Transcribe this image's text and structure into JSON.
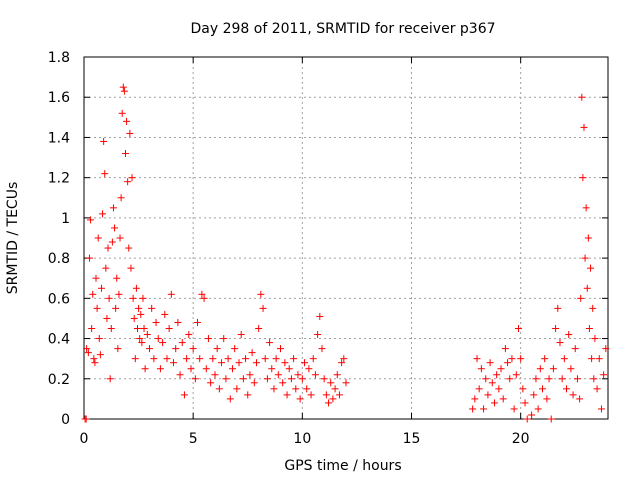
{
  "chart_data": {
    "type": "scatter",
    "title": "Day 298 of 2011, SRMTID for receiver p367",
    "xlabel": "GPS time / hours",
    "ylabel": "SRMTID / TECUs",
    "xlim": [
      0,
      24
    ],
    "ylim": [
      0,
      1.8
    ],
    "x_ticks": [
      0,
      5,
      10,
      15,
      20
    ],
    "x_tick_labels": [
      "0",
      "5",
      "10",
      "15",
      "20"
    ],
    "y_ticks": [
      0,
      0.2,
      0.4,
      0.6,
      0.8,
      1.0,
      1.2,
      1.4,
      1.6,
      1.8
    ],
    "y_tick_labels": [
      "0",
      "0.2",
      "0.4",
      "0.6",
      "0.8",
      "1",
      "1.2",
      "1.4",
      "1.6",
      "1.8"
    ],
    "grid": true,
    "marker": "+",
    "color": "#ff0000",
    "series": [
      {
        "name": "SRMTID p367",
        "points": [
          [
            0.05,
            0.0
          ],
          [
            0.1,
            0.0
          ],
          [
            0.12,
            0.35
          ],
          [
            0.2,
            0.33
          ],
          [
            0.25,
            0.8
          ],
          [
            0.3,
            0.99
          ],
          [
            0.35,
            0.45
          ],
          [
            0.4,
            0.62
          ],
          [
            0.45,
            0.3
          ],
          [
            0.5,
            0.28
          ],
          [
            0.55,
            0.7
          ],
          [
            0.6,
            0.55
          ],
          [
            0.65,
            0.9
          ],
          [
            0.7,
            0.4
          ],
          [
            0.75,
            0.32
          ],
          [
            0.8,
            0.65
          ],
          [
            0.85,
            1.02
          ],
          [
            0.9,
            1.38
          ],
          [
            0.95,
            1.22
          ],
          [
            1.0,
            0.75
          ],
          [
            1.05,
            0.5
          ],
          [
            1.1,
            0.85
          ],
          [
            1.15,
            0.6
          ],
          [
            1.2,
            0.2
          ],
          [
            1.25,
            0.45
          ],
          [
            1.3,
            0.88
          ],
          [
            1.35,
            1.05
          ],
          [
            1.4,
            0.95
          ],
          [
            1.45,
            0.55
          ],
          [
            1.5,
            0.7
          ],
          [
            1.55,
            0.35
          ],
          [
            1.6,
            0.62
          ],
          [
            1.65,
            0.9
          ],
          [
            1.7,
            1.1
          ],
          [
            1.75,
            1.52
          ],
          [
            1.8,
            1.65
          ],
          [
            1.85,
            1.63
          ],
          [
            1.9,
            1.32
          ],
          [
            1.95,
            1.48
          ],
          [
            2.0,
            1.18
          ],
          [
            2.05,
            0.85
          ],
          [
            2.1,
            1.42
          ],
          [
            2.15,
            0.75
          ],
          [
            2.2,
            1.2
          ],
          [
            2.25,
            0.6
          ],
          [
            2.3,
            0.5
          ],
          [
            2.35,
            0.3
          ],
          [
            2.4,
            0.65
          ],
          [
            2.45,
            0.45
          ],
          [
            2.5,
            0.55
          ],
          [
            2.55,
            0.4
          ],
          [
            2.6,
            0.52
          ],
          [
            2.65,
            0.38
          ],
          [
            2.7,
            0.6
          ],
          [
            2.75,
            0.45
          ],
          [
            2.8,
            0.25
          ],
          [
            2.9,
            0.42
          ],
          [
            3.0,
            0.35
          ],
          [
            3.1,
            0.55
          ],
          [
            3.2,
            0.3
          ],
          [
            3.3,
            0.48
          ],
          [
            3.4,
            0.4
          ],
          [
            3.5,
            0.25
          ],
          [
            3.6,
            0.38
          ],
          [
            3.7,
            0.52
          ],
          [
            3.8,
            0.3
          ],
          [
            3.9,
            0.45
          ],
          [
            4.0,
            0.62
          ],
          [
            4.1,
            0.28
          ],
          [
            4.2,
            0.35
          ],
          [
            4.3,
            0.48
          ],
          [
            4.4,
            0.22
          ],
          [
            4.5,
            0.38
          ],
          [
            4.6,
            0.12
          ],
          [
            4.7,
            0.3
          ],
          [
            4.8,
            0.42
          ],
          [
            4.9,
            0.25
          ],
          [
            5.0,
            0.35
          ],
          [
            5.1,
            0.2
          ],
          [
            5.2,
            0.48
          ],
          [
            5.3,
            0.3
          ],
          [
            5.4,
            0.62
          ],
          [
            5.5,
            0.6
          ],
          [
            5.6,
            0.25
          ],
          [
            5.7,
            0.4
          ],
          [
            5.8,
            0.18
          ],
          [
            5.9,
            0.3
          ],
          [
            6.0,
            0.22
          ],
          [
            6.1,
            0.35
          ],
          [
            6.2,
            0.15
          ],
          [
            6.3,
            0.28
          ],
          [
            6.4,
            0.4
          ],
          [
            6.5,
            0.2
          ],
          [
            6.6,
            0.3
          ],
          [
            6.7,
            0.1
          ],
          [
            6.8,
            0.25
          ],
          [
            6.9,
            0.35
          ],
          [
            7.0,
            0.15
          ],
          [
            7.1,
            0.28
          ],
          [
            7.2,
            0.42
          ],
          [
            7.3,
            0.2
          ],
          [
            7.4,
            0.3
          ],
          [
            7.5,
            0.12
          ],
          [
            7.6,
            0.22
          ],
          [
            7.7,
            0.33
          ],
          [
            7.8,
            0.18
          ],
          [
            7.9,
            0.28
          ],
          [
            8.0,
            0.45
          ],
          [
            8.1,
            0.62
          ],
          [
            8.2,
            0.55
          ],
          [
            8.3,
            0.3
          ],
          [
            8.4,
            0.2
          ],
          [
            8.5,
            0.38
          ],
          [
            8.6,
            0.25
          ],
          [
            8.7,
            0.15
          ],
          [
            8.8,
            0.3
          ],
          [
            8.9,
            0.22
          ],
          [
            9.0,
            0.35
          ],
          [
            9.1,
            0.18
          ],
          [
            9.2,
            0.28
          ],
          [
            9.3,
            0.12
          ],
          [
            9.4,
            0.25
          ],
          [
            9.5,
            0.2
          ],
          [
            9.6,
            0.3
          ],
          [
            9.7,
            0.15
          ],
          [
            9.8,
            0.22
          ],
          [
            9.9,
            0.1
          ],
          [
            10.0,
            0.2
          ],
          [
            10.1,
            0.28
          ],
          [
            10.2,
            0.15
          ],
          [
            10.3,
            0.25
          ],
          [
            10.4,
            0.12
          ],
          [
            10.5,
            0.3
          ],
          [
            10.6,
            0.22
          ],
          [
            10.7,
            0.42
          ],
          [
            10.8,
            0.51
          ],
          [
            10.9,
            0.35
          ],
          [
            11.0,
            0.2
          ],
          [
            11.1,
            0.12
          ],
          [
            11.2,
            0.08
          ],
          [
            11.3,
            0.18
          ],
          [
            11.4,
            0.1
          ],
          [
            11.5,
            0.15
          ],
          [
            11.6,
            0.22
          ],
          [
            11.7,
            0.12
          ],
          [
            11.8,
            0.28
          ],
          [
            11.9,
            0.3
          ],
          [
            12.0,
            0.18
          ],
          [
            17.8,
            0.05
          ],
          [
            17.9,
            0.1
          ],
          [
            18.0,
            0.3
          ],
          [
            18.1,
            0.15
          ],
          [
            18.2,
            0.25
          ],
          [
            18.3,
            0.05
          ],
          [
            18.4,
            0.2
          ],
          [
            18.5,
            0.12
          ],
          [
            18.6,
            0.28
          ],
          [
            18.7,
            0.18
          ],
          [
            18.8,
            0.08
          ],
          [
            18.9,
            0.22
          ],
          [
            19.0,
            0.15
          ],
          [
            19.1,
            0.25
          ],
          [
            19.2,
            0.1
          ],
          [
            19.3,
            0.35
          ],
          [
            19.4,
            0.28
          ],
          [
            19.5,
            0.2
          ],
          [
            19.6,
            0.3
          ],
          [
            19.7,
            0.05
          ],
          [
            19.8,
            0.22
          ],
          [
            19.9,
            0.45
          ],
          [
            20.0,
            0.3
          ],
          [
            20.1,
            0.15
          ],
          [
            20.2,
            0.08
          ],
          [
            20.3,
            0.0
          ],
          [
            20.5,
            0.02
          ],
          [
            20.6,
            0.12
          ],
          [
            20.7,
            0.2
          ],
          [
            20.8,
            0.05
          ],
          [
            20.9,
            0.25
          ],
          [
            21.0,
            0.15
          ],
          [
            21.1,
            0.3
          ],
          [
            21.2,
            0.1
          ],
          [
            21.3,
            0.2
          ],
          [
            21.4,
            0.0
          ],
          [
            21.5,
            0.25
          ],
          [
            21.6,
            0.45
          ],
          [
            21.7,
            0.55
          ],
          [
            21.8,
            0.38
          ],
          [
            21.9,
            0.2
          ],
          [
            22.0,
            0.3
          ],
          [
            22.1,
            0.15
          ],
          [
            22.2,
            0.42
          ],
          [
            22.3,
            0.25
          ],
          [
            22.4,
            0.12
          ],
          [
            22.5,
            0.35
          ],
          [
            22.6,
            0.2
          ],
          [
            22.7,
            0.1
          ],
          [
            22.75,
            0.6
          ],
          [
            22.8,
            1.6
          ],
          [
            22.85,
            1.2
          ],
          [
            22.9,
            1.45
          ],
          [
            22.95,
            0.8
          ],
          [
            23.0,
            1.05
          ],
          [
            23.05,
            0.65
          ],
          [
            23.1,
            0.9
          ],
          [
            23.15,
            0.45
          ],
          [
            23.2,
            0.75
          ],
          [
            23.25,
            0.3
          ],
          [
            23.3,
            0.55
          ],
          [
            23.35,
            0.2
          ],
          [
            23.4,
            0.4
          ],
          [
            23.5,
            0.15
          ],
          [
            23.6,
            0.3
          ],
          [
            23.7,
            0.05
          ],
          [
            23.8,
            0.22
          ],
          [
            23.9,
            0.35
          ]
        ]
      }
    ]
  }
}
